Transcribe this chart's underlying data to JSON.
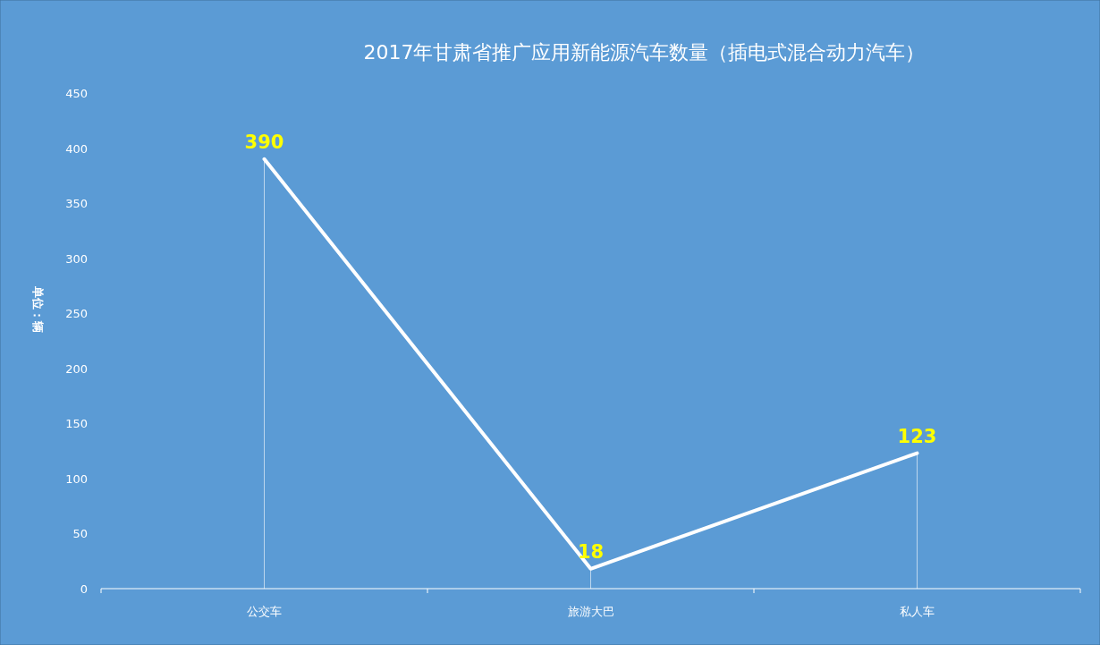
{
  "chart_data": {
    "type": "line",
    "title": "2017年甘肃省推广应用新能源汽车数量（插电式混合动力汽车）",
    "ylabel": "单位：辆",
    "categories": [
      "公交车",
      "旅游大巴",
      "私人车"
    ],
    "series": [
      {
        "color": "#ffffff",
        "values": [
          390,
          18,
          123
        ]
      }
    ],
    "ylim": [
      0,
      450
    ],
    "yticks": [
      0,
      50,
      100,
      150,
      200,
      250,
      300,
      350,
      400,
      450
    ],
    "grid": "x",
    "line_style": "solid",
    "data_labels": true
  }
}
